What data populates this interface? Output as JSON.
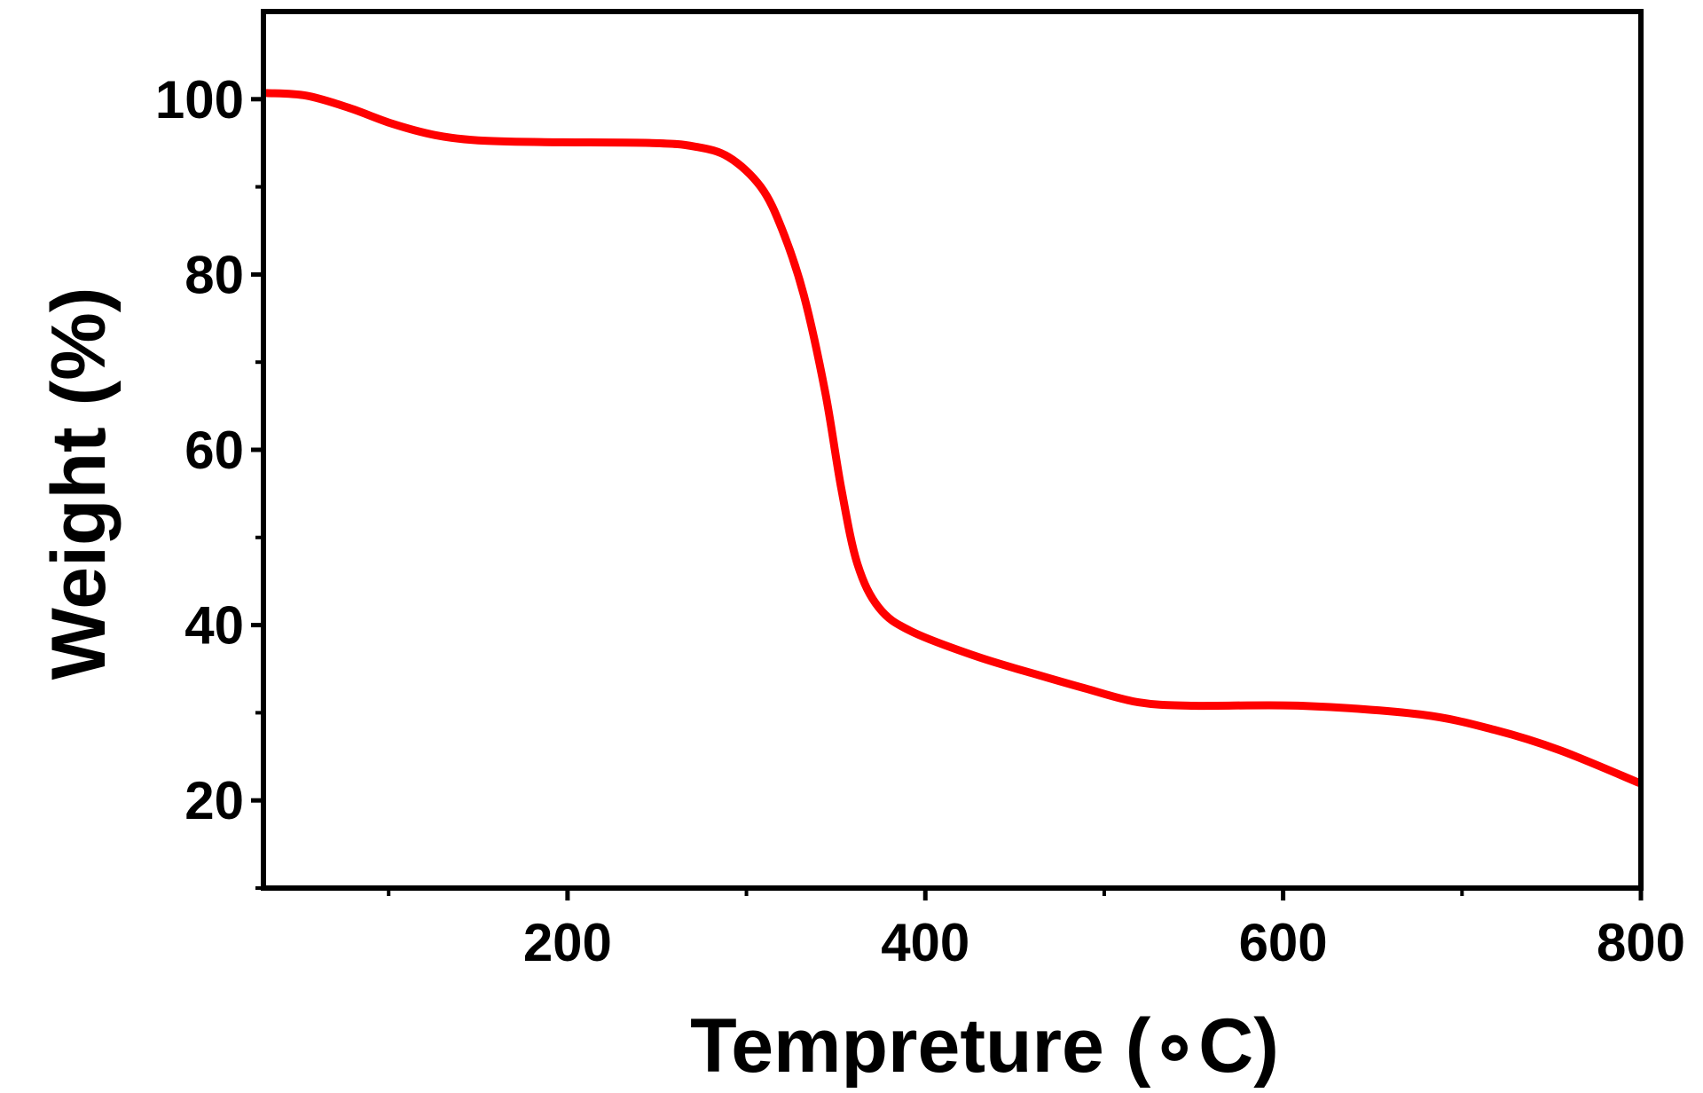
{
  "chart_data": {
    "type": "line",
    "title": "",
    "xlabel": "Tempreture (∘C)",
    "ylabel": "Weight (%)",
    "xlim": [
      30,
      800
    ],
    "ylim": [
      10,
      110
    ],
    "xticks": [
      200,
      400,
      600,
      800
    ],
    "xticks_minor": [
      100,
      300,
      500,
      700
    ],
    "yticks": [
      20,
      40,
      60,
      80,
      100
    ],
    "yticks_minor": [
      10,
      30,
      50,
      70,
      90
    ],
    "grid": false,
    "legend": "none",
    "series": [
      {
        "name": "TGA",
        "color": "#ff0000",
        "x": [
          32,
          54,
          78,
          102,
          126,
          150,
          187,
          247,
          271,
          290,
          308,
          320,
          332,
          344,
          353,
          362,
          374,
          392,
          429,
          465,
          489,
          519,
          550,
          610,
          677,
          719,
          755,
          799
        ],
        "y": [
          100.7,
          100.4,
          99.0,
          97.2,
          95.9,
          95.3,
          95.1,
          95.0,
          94.6,
          93.4,
          90.0,
          85.1,
          77.7,
          66.6,
          55.6,
          47.0,
          42.0,
          39.3,
          36.4,
          34.2,
          32.8,
          31.2,
          30.8,
          30.8,
          29.8,
          28.0,
          25.7,
          22.0
        ]
      }
    ]
  }
}
